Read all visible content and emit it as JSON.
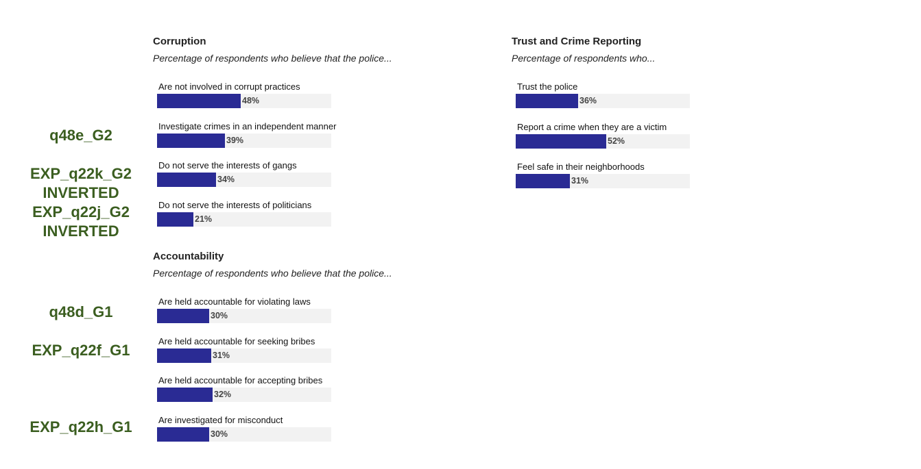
{
  "chart_data": [
    {
      "type": "bar",
      "title": "Corruption",
      "subtitle": "Percentage of respondents who believe that the police...",
      "categories": [
        "Are not involved in corrupt practices",
        "Investigate crimes in an independent manner",
        "Do not serve the interests of gangs",
        "Do not serve the interests of politicians"
      ],
      "values": [
        48,
        39,
        34,
        21
      ],
      "value_labels": [
        "48%",
        "39%",
        "34%",
        "21%"
      ],
      "xlim": [
        0,
        100
      ],
      "orientation": "horizontal",
      "grid": false
    },
    {
      "type": "bar",
      "title": "Accountability",
      "subtitle": "Percentage of respondents who believe that the police...",
      "categories": [
        "Are held accountable for violating laws",
        "Are held accountable for seeking bribes",
        "Are held accountable for accepting bribes",
        "Are investigated for misconduct"
      ],
      "values": [
        30,
        31,
        32,
        30
      ],
      "value_labels": [
        "30%",
        "31%",
        "32%",
        "30%"
      ],
      "xlim": [
        0,
        100
      ],
      "orientation": "horizontal",
      "grid": false
    },
    {
      "type": "bar",
      "title": "Trust and Crime Reporting",
      "subtitle": "Percentage of respondents who...",
      "categories": [
        "Trust the police",
        "Report a crime when they are a victim",
        "Feel safe in their neighborhoods"
      ],
      "values": [
        36,
        52,
        31
      ],
      "value_labels": [
        "36%",
        "52%",
        "31%"
      ],
      "xlim": [
        0,
        100
      ],
      "orientation": "horizontal",
      "grid": false
    }
  ],
  "annotations": [
    "q48e_G2",
    "EXP_q22k_G2\nINVERTED",
    "EXP_q22j_G2\nINVERTED",
    "q48d_G1",
    "EXP_q22f_G1",
    "EXP_q22h_G1"
  ],
  "colors": {
    "bar_fill": "#2a2b94",
    "bar_track": "#f2f2f2",
    "annotation_text": "#3b5e20"
  }
}
